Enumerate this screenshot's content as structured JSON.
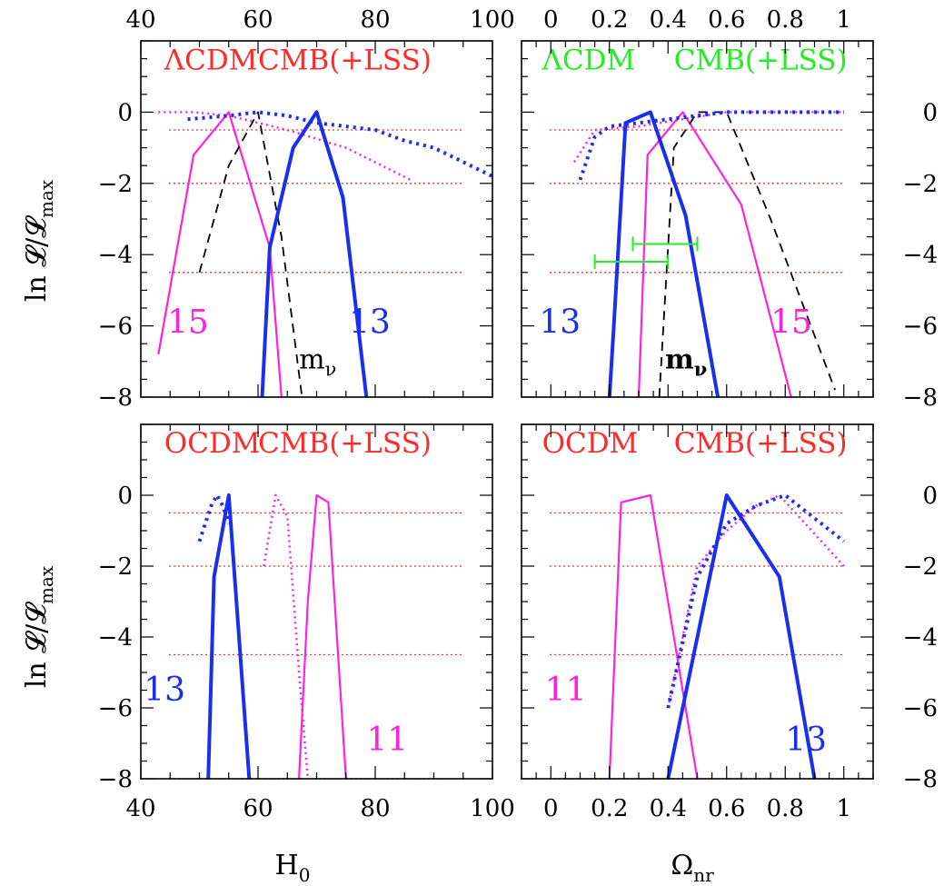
{
  "colors": {
    "red": "#ff2a2a",
    "green": "#22ee22",
    "blue": "#1a2eee",
    "magenta": "#ff22dd",
    "black": "#000000",
    "refline": "#e83030"
  },
  "axes": {
    "h0_ticks": [
      "40",
      "60",
      "80",
      "100"
    ],
    "om_ticks": [
      "0",
      "0.2",
      "0.4",
      "0.6",
      "0.8",
      "1"
    ],
    "y_ticks": [
      "0",
      "−2",
      "−4",
      "−6",
      "−8"
    ],
    "xlabel_left": "H",
    "xlabel_left_sub": "0",
    "xlabel_right": "Ω",
    "xlabel_right_sub": "nr",
    "ylabel": "ln 𝓛/𝓛",
    "ylabel_sub": "max"
  },
  "chart_data": [
    {
      "type": "line",
      "panel": "top-left",
      "x_quantity": "H0",
      "xlim": [
        40,
        100
      ],
      "ylim": [
        -8,
        2
      ],
      "reference_lines_y": [
        -0.5,
        -2,
        -4.5,
        -8
      ],
      "labels": [
        {
          "text": "ΛCDM",
          "color": "red",
          "x": 44,
          "y": 1.2,
          "size": 31
        },
        {
          "text": "CMB(+LSS)",
          "color": "red",
          "x": 60,
          "y": 1.2,
          "size": 31
        },
        {
          "text": "15",
          "color": "magenta",
          "x": 44.5,
          "y": -6.2,
          "size": 36
        },
        {
          "text": "13",
          "color": "blue",
          "x": 75.5,
          "y": -6.2,
          "size": 36
        },
        {
          "text": "m",
          "sub": "ν",
          "color": "black",
          "x": 67,
          "y": -7.2,
          "size": 30
        }
      ],
      "series": [
        {
          "color": "magenta",
          "style": "solid",
          "width": 2.2,
          "x": [
            43,
            49,
            55,
            62,
            64
          ],
          "y": [
            -6.8,
            -1.2,
            0,
            -3.8,
            -8
          ]
        },
        {
          "color": "magenta",
          "style": "dotted",
          "width": 2.5,
          "x": [
            43,
            49,
            55,
            65,
            75,
            86
          ],
          "y": [
            0,
            0,
            -0.1,
            -0.5,
            -1,
            -1.9
          ]
        },
        {
          "color": "black",
          "style": "dashed",
          "width": 1.8,
          "x": [
            50,
            55,
            60,
            64,
            67.5
          ],
          "y": [
            -4.5,
            -1.5,
            0,
            -3.5,
            -8
          ]
        },
        {
          "color": "blue",
          "style": "solid",
          "width": 4,
          "x": [
            60.7,
            62,
            66,
            70,
            74.5,
            78.5
          ],
          "y": [
            -8,
            -3.8,
            -1,
            0,
            -2.4,
            -8
          ]
        },
        {
          "color": "blue",
          "style": "dotted",
          "width": 4,
          "x": [
            48,
            55,
            60,
            65,
            70,
            75,
            80,
            85,
            90,
            95,
            100
          ],
          "y": [
            -0.2,
            -0.1,
            0,
            -0.1,
            -0.3,
            -0.4,
            -0.5,
            -0.8,
            -1,
            -1.4,
            -1.8
          ]
        }
      ]
    },
    {
      "type": "line",
      "panel": "top-right",
      "x_quantity": "Omega_nr",
      "xlim": [
        -0.1,
        1.1
      ],
      "ylim": [
        -8,
        2
      ],
      "reference_lines_y": [
        -0.5,
        -2,
        -4.5,
        -8
      ],
      "labels": [
        {
          "text": "ΛCDM",
          "color": "green",
          "x": -0.03,
          "y": 1.2,
          "size": 31
        },
        {
          "text": "CMB(+LSS)",
          "color": "green",
          "x": 0.42,
          "y": 1.2,
          "size": 31
        },
        {
          "text": "13",
          "color": "blue",
          "x": -0.04,
          "y": -6.2,
          "size": 36
        },
        {
          "text": "15",
          "color": "magenta",
          "x": 0.75,
          "y": -6.2,
          "size": 36
        },
        {
          "text": "m",
          "sub": "ν",
          "color": "black",
          "x": 0.39,
          "y": -7.2,
          "size": 30,
          "bold": true
        }
      ],
      "error_bars": [
        {
          "color": "green",
          "x_low": 0.15,
          "x_high": 0.4,
          "y": -4.2
        },
        {
          "color": "green",
          "x_low": 0.28,
          "x_high": 0.5,
          "y": -3.7
        }
      ],
      "series": [
        {
          "color": "magenta",
          "style": "dotted",
          "width": 2.5,
          "x": [
            0.08,
            0.15,
            0.3,
            0.45,
            0.6,
            0.8,
            1
          ],
          "y": [
            -1.4,
            -0.5,
            -0.4,
            -0.2,
            0,
            0,
            0
          ]
        },
        {
          "color": "magenta",
          "style": "solid",
          "width": 2.2,
          "x": [
            0.3,
            0.33,
            0.45,
            0.65,
            0.82
          ],
          "y": [
            -8,
            -1.2,
            0,
            -2.6,
            -8
          ]
        },
        {
          "color": "black",
          "style": "dashed",
          "width": 1.8,
          "x": [
            0.37,
            0.42,
            0.5,
            0.6,
            0.75,
            0.97
          ],
          "y": [
            -8,
            -1,
            0,
            0,
            -3,
            -7.8
          ]
        },
        {
          "color": "blue",
          "style": "solid",
          "width": 4,
          "x": [
            0.2,
            0.215,
            0.255,
            0.34,
            0.46,
            0.57
          ],
          "y": [
            -8,
            -6,
            -0.3,
            0,
            -2.9,
            -8
          ]
        },
        {
          "color": "blue",
          "style": "dotted",
          "width": 4,
          "x": [
            0.1,
            0.15,
            0.2,
            0.3,
            0.4,
            0.5,
            0.6,
            0.8,
            1
          ],
          "y": [
            -1.9,
            -0.7,
            -0.4,
            -0.3,
            -0.2,
            -0.1,
            0,
            0,
            0
          ]
        }
      ]
    },
    {
      "type": "line",
      "panel": "bottom-left",
      "x_quantity": "H0",
      "xlim": [
        40,
        100
      ],
      "ylim": [
        -8,
        2
      ],
      "reference_lines_y": [
        -0.5,
        -2,
        -4.5,
        -8
      ],
      "labels": [
        {
          "text": "OCDM",
          "color": "red",
          "x": 44,
          "y": 1.2,
          "size": 31
        },
        {
          "text": "CMB(+LSS)",
          "color": "red",
          "x": 60,
          "y": 1.2,
          "size": 31
        },
        {
          "text": "13",
          "color": "blue",
          "x": 40.5,
          "y": -5.8,
          "size": 36
        },
        {
          "text": "11",
          "color": "magenta",
          "x": 78.5,
          "y": -7.2,
          "size": 36
        }
      ],
      "series": [
        {
          "color": "blue",
          "style": "dotted",
          "width": 4,
          "x": [
            50,
            52,
            53,
            54,
            55
          ],
          "y": [
            -1.3,
            -0.3,
            0,
            -0.3,
            -0.8
          ]
        },
        {
          "color": "magenta",
          "style": "dotted",
          "width": 2.5,
          "x": [
            61,
            63,
            65,
            67,
            68.5
          ],
          "y": [
            -2,
            0,
            -0.6,
            -5,
            -8
          ]
        },
        {
          "color": "blue",
          "style": "solid",
          "width": 4,
          "x": [
            51.5,
            52.5,
            55,
            58.5
          ],
          "y": [
            -8,
            -2.3,
            0,
            -8
          ]
        },
        {
          "color": "magenta",
          "style": "solid",
          "width": 2.2,
          "x": [
            67,
            68.5,
            70,
            72,
            75
          ],
          "y": [
            -8,
            -3,
            0,
            -0.2,
            -8
          ]
        }
      ]
    },
    {
      "type": "line",
      "panel": "bottom-right",
      "x_quantity": "Omega_nr",
      "xlim": [
        -0.1,
        1.1
      ],
      "ylim": [
        -8,
        2
      ],
      "reference_lines_y": [
        -0.5,
        -2,
        -4.5,
        -8
      ],
      "labels": [
        {
          "text": "OCDM",
          "color": "red",
          "x": -0.03,
          "y": 1.2,
          "size": 31
        },
        {
          "text": "CMB(+LSS)",
          "color": "red",
          "x": 0.42,
          "y": 1.2,
          "size": 31
        },
        {
          "text": "11",
          "color": "magenta",
          "x": -0.02,
          "y": -5.8,
          "size": 36
        },
        {
          "text": "13",
          "color": "blue",
          "x": 0.8,
          "y": -7.2,
          "size": 36
        }
      ],
      "series": [
        {
          "color": "magenta",
          "style": "solid",
          "width": 2.2,
          "x": [
            0.2,
            0.24,
            0.34,
            0.5
          ],
          "y": [
            -8,
            -0.2,
            0,
            -8
          ]
        },
        {
          "color": "magenta",
          "style": "dotted",
          "width": 2.5,
          "x": [
            0.4,
            0.5,
            0.6,
            0.7,
            0.78,
            1
          ],
          "y": [
            -6,
            -2,
            -1,
            -0.3,
            0,
            -2
          ]
        },
        {
          "color": "blue",
          "style": "dotted",
          "width": 4,
          "x": [
            0.4,
            0.5,
            0.6,
            0.7,
            0.8,
            1
          ],
          "y": [
            -6,
            -2.3,
            -0.8,
            -0.3,
            0,
            -1.3
          ]
        },
        {
          "color": "blue",
          "style": "solid",
          "width": 4,
          "x": [
            0.4,
            0.6,
            0.78,
            0.9
          ],
          "y": [
            -8,
            0,
            -2.3,
            -8
          ]
        }
      ]
    }
  ]
}
